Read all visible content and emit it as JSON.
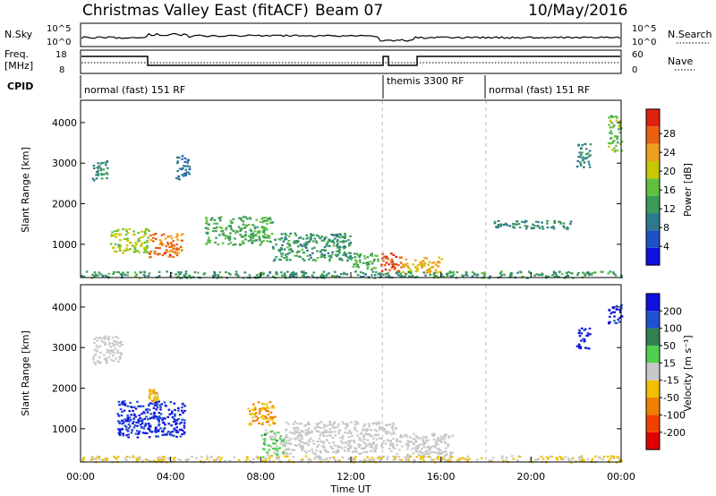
{
  "header": {
    "title": "Christmas Valley East (fitACF)",
    "beam": "Beam 07",
    "date": "10/May/2016"
  },
  "top_panels": {
    "nsky_label": "N.Sky",
    "nsky_ticks": [
      "10^5",
      "10^0"
    ],
    "nsearch_label": "N.Search",
    "nsearch_ticks": [
      "10^5",
      "10^0"
    ],
    "freq_label": "Freq.",
    "freq_unit": "[MHz]",
    "freq_ticks": [
      "18",
      "8"
    ],
    "nave_label": "Nave",
    "nave_ticks": [
      "60",
      "0"
    ],
    "cpid_label": "CPID",
    "cpid_segments": [
      "normal (fast) 151 RF",
      "themis 3300 RF",
      "normal (fast) 151 RF"
    ]
  },
  "colors": {
    "power": [
      "#1010e0",
      "#1e50c8",
      "#2e7a8c",
      "#3a9a5a",
      "#60c040",
      "#c8c800",
      "#f0a020",
      "#e86010",
      "#e02010"
    ],
    "velocity": [
      "#e00000",
      "#f04000",
      "#f08000",
      "#f0c000",
      "#c8c8c8",
      "#50d050",
      "#308050",
      "#2050d0",
      "#1010e0"
    ],
    "ground_scatter": "#c8c8c8"
  },
  "chart_data": [
    {
      "type": "heatmap",
      "name": "power",
      "ylabel": "Slant Range [km]",
      "yticks": [
        1000,
        2000,
        3000,
        4000
      ],
      "ylim": [
        180,
        4550
      ],
      "xlim_hours": [
        0,
        24
      ],
      "colorbar_label": "Power [dB]",
      "colorbar_ticks": [
        "4",
        "8",
        "12",
        "16",
        "20",
        "24",
        "28"
      ],
      "clim": [
        0,
        32
      ],
      "regions": [
        {
          "t": [
            0.5,
            1.2
          ],
          "r": [
            2600,
            3100
          ],
          "v": 10
        },
        {
          "t": [
            1.3,
            3.0
          ],
          "r": [
            800,
            1400
          ],
          "v": 18
        },
        {
          "t": [
            3.0,
            4.5
          ],
          "r": [
            700,
            1300
          ],
          "v": 26
        },
        {
          "t": [
            4.2,
            4.8
          ],
          "r": [
            2600,
            3200
          ],
          "v": 8
        },
        {
          "t": [
            5.5,
            8.5
          ],
          "r": [
            1000,
            1700
          ],
          "v": 14
        },
        {
          "t": [
            8.5,
            12.0
          ],
          "r": [
            600,
            1300
          ],
          "v": 12
        },
        {
          "t": [
            12.0,
            13.2
          ],
          "r": [
            400,
            800
          ],
          "v": 14
        },
        {
          "t": [
            13.3,
            14.2
          ],
          "r": [
            300,
            800
          ],
          "v": 28
        },
        {
          "t": [
            14.2,
            16.0
          ],
          "r": [
            300,
            700
          ],
          "v": 22
        },
        {
          "t": [
            18.2,
            21.8
          ],
          "r": [
            1400,
            1600
          ],
          "v": 10
        },
        {
          "t": [
            22.0,
            22.6
          ],
          "r": [
            2900,
            3500
          ],
          "v": 10
        },
        {
          "t": [
            23.4,
            24.0
          ],
          "r": [
            3300,
            4200
          ],
          "v": 16
        },
        {
          "t": [
            0.0,
            24.0
          ],
          "r": [
            190,
            350
          ],
          "v": 12
        }
      ]
    },
    {
      "type": "heatmap",
      "name": "velocity",
      "ylabel": "Slant Range [km]",
      "xlabel": "Time UT",
      "yticks": [
        1000,
        2000,
        3000,
        4000
      ],
      "ylim": [
        180,
        4550
      ],
      "xticks": [
        "00:00",
        "04:00",
        "08:00",
        "12:00",
        "16:00",
        "20:00",
        "00:00"
      ],
      "xlim_hours": [
        0,
        24
      ],
      "colorbar_label": "Velocity [m s⁻¹]",
      "colorbar_ticks": [
        "200",
        "100",
        "50",
        "15",
        "-15",
        "-50",
        "-100",
        "-200"
      ],
      "clim": [
        -250,
        250
      ],
      "regions": [
        {
          "t": [
            0.5,
            1.8
          ],
          "r": [
            2600,
            3300
          ],
          "v": "gs"
        },
        {
          "t": [
            1.6,
            4.6
          ],
          "r": [
            800,
            1700
          ],
          "v": 200
        },
        {
          "t": [
            3.0,
            3.4
          ],
          "r": [
            1700,
            2000
          ],
          "v": -60
        },
        {
          "t": [
            7.3,
            8.6
          ],
          "r": [
            1100,
            1700
          ],
          "v": -80
        },
        {
          "t": [
            8.0,
            9.0
          ],
          "r": [
            300,
            1000
          ],
          "v": 40
        },
        {
          "t": [
            9.0,
            14.0
          ],
          "r": [
            400,
            1200
          ],
          "v": "gs"
        },
        {
          "t": [
            14.0,
            16.5
          ],
          "r": [
            300,
            900
          ],
          "v": "gs"
        },
        {
          "t": [
            0.0,
            24.0
          ],
          "r": [
            190,
            350
          ],
          "v": -30
        },
        {
          "t": [
            22.0,
            22.6
          ],
          "r": [
            3000,
            3500
          ],
          "v": 220
        },
        {
          "t": [
            23.4,
            24.0
          ],
          "r": [
            3600,
            4100
          ],
          "v": 200
        }
      ]
    }
  ]
}
